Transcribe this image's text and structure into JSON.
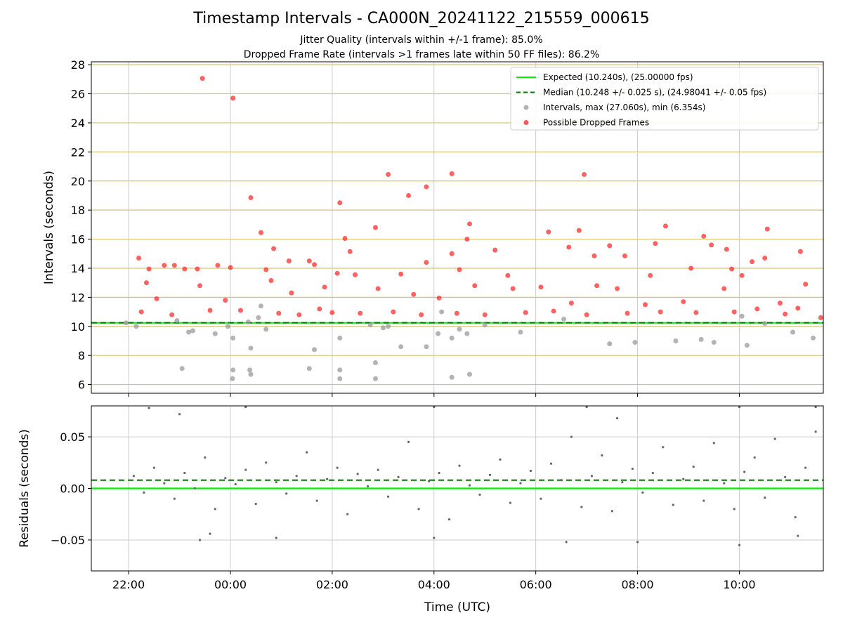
{
  "title": "Timestamp Intervals - CA000N_20241122_215559_000615",
  "subtitle_jitter": "Jitter Quality (intervals within +/-1 frame): 85.0%",
  "subtitle_dropped": "Dropped Frame Rate (intervals >1 frames late within 50 FF files): 86.2%",
  "colors": {
    "expected": "#00ee00",
    "median": "#007700",
    "intervals": "#999999",
    "dropped": "#ff2020",
    "residual": "#666666",
    "top_grid": "#d8c27a",
    "grid": "#cccccc"
  },
  "chart_data": [
    {
      "type": "scatter",
      "panel": "top",
      "ylabel": "Intervals (seconds)",
      "ylim": [
        5.4,
        28.2
      ],
      "yticks": [
        6,
        8,
        10,
        12,
        14,
        16,
        18,
        20,
        22,
        24,
        26,
        28
      ],
      "x_time_range_hours": [
        21.267,
        35.65
      ],
      "expected_interval": 10.24,
      "median_interval": 10.248,
      "legend_position": "top-right",
      "legend": [
        "Expected (10.240s), (25.00000 fps)",
        "Median (10.248 +/- 0.025 s), (24.98041 +/- 0.05 fps)",
        "Intervals, max (27.060s), min (6.354s)",
        "Possible Dropped Frames"
      ],
      "series": [
        {
          "name": "Intervals, max (27.060s), min (6.354s)",
          "points": [
            [
              21.95,
              10.24
            ],
            [
              22.15,
              10.0
            ],
            [
              22.95,
              10.4
            ],
            [
              23.05,
              7.1
            ],
            [
              23.18,
              9.6
            ],
            [
              23.26,
              9.7
            ],
            [
              23.7,
              9.5
            ],
            [
              23.95,
              10.0
            ],
            [
              24.05,
              9.2
            ],
            [
              24.05,
              7.0
            ],
            [
              24.04,
              6.4
            ],
            [
              24.35,
              10.3
            ],
            [
              24.38,
              7.0
            ],
            [
              24.4,
              8.5
            ],
            [
              24.4,
              6.7
            ],
            [
              24.6,
              11.4
            ],
            [
              24.7,
              9.8
            ],
            [
              24.55,
              10.6
            ],
            [
              25.55,
              7.1
            ],
            [
              25.65,
              8.4
            ],
            [
              26.15,
              9.2
            ],
            [
              26.15,
              7.0
            ],
            [
              26.15,
              6.4
            ],
            [
              26.75,
              10.1
            ],
            [
              26.85,
              7.5
            ],
            [
              26.85,
              6.4
            ],
            [
              27.0,
              9.9
            ],
            [
              27.1,
              10.0
            ],
            [
              27.35,
              8.6
            ],
            [
              27.85,
              8.6
            ],
            [
              28.08,
              9.5
            ],
            [
              28.15,
              11.0
            ],
            [
              28.35,
              9.2
            ],
            [
              28.35,
              6.5
            ],
            [
              28.5,
              9.8
            ],
            [
              28.65,
              9.5
            ],
            [
              28.7,
              6.7
            ],
            [
              29.0,
              10.1
            ],
            [
              29.7,
              9.6
            ],
            [
              30.55,
              10.5
            ],
            [
              31.45,
              8.8
            ],
            [
              31.95,
              8.9
            ],
            [
              32.75,
              9.0
            ],
            [
              33.25,
              9.1
            ],
            [
              33.5,
              8.9
            ],
            [
              34.05,
              10.7
            ],
            [
              34.15,
              8.7
            ],
            [
              34.5,
              10.2
            ],
            [
              35.05,
              9.6
            ],
            [
              35.45,
              9.2
            ]
          ]
        },
        {
          "name": "Possible Dropped Frames",
          "points": [
            [
              23.45,
              27.06
            ],
            [
              24.05,
              25.7
            ],
            [
              24.4,
              18.85
            ],
            [
              24.6,
              16.45
            ],
            [
              24.85,
              15.35
            ],
            [
              26.15,
              18.5
            ],
            [
              26.25,
              16.05
            ],
            [
              26.35,
              15.15
            ],
            [
              26.85,
              16.8
            ],
            [
              27.1,
              20.45
            ],
            [
              27.5,
              19.0
            ],
            [
              27.35,
              13.6
            ],
            [
              27.85,
              19.6
            ],
            [
              27.85,
              14.4
            ],
            [
              28.35,
              20.5
            ],
            [
              28.35,
              15.0
            ],
            [
              28.65,
              16.0
            ],
            [
              28.7,
              17.05
            ],
            [
              28.5,
              13.9
            ],
            [
              29.2,
              15.25
            ],
            [
              29.45,
              13.5
            ],
            [
              30.25,
              16.5
            ],
            [
              30.85,
              16.6
            ],
            [
              30.65,
              15.45
            ],
            [
              30.95,
              20.45
            ],
            [
              31.15,
              14.85
            ],
            [
              31.45,
              15.55
            ],
            [
              31.75,
              14.85
            ],
            [
              32.25,
              13.5
            ],
            [
              32.35,
              15.7
            ],
            [
              32.55,
              16.9
            ],
            [
              33.05,
              14.0
            ],
            [
              33.3,
              16.2
            ],
            [
              33.45,
              15.6
            ],
            [
              33.75,
              15.3
            ],
            [
              33.85,
              13.95
            ],
            [
              34.05,
              13.5
            ],
            [
              34.55,
              16.7
            ],
            [
              34.5,
              14.7
            ],
            [
              34.25,
              14.45
            ],
            [
              35.2,
              15.15
            ],
            [
              35.3,
              12.9
            ],
            [
              22.2,
              14.7
            ],
            [
              22.4,
              13.95
            ],
            [
              22.35,
              13.0
            ],
            [
              22.7,
              14.2
            ],
            [
              22.9,
              14.2
            ],
            [
              23.1,
              13.95
            ],
            [
              23.35,
              13.95
            ],
            [
              23.75,
              14.2
            ],
            [
              24.0,
              14.05
            ],
            [
              24.7,
              13.9
            ],
            [
              25.15,
              14.5
            ],
            [
              25.55,
              14.5
            ],
            [
              25.65,
              14.25
            ],
            [
              25.85,
              12.7
            ],
            [
              26.1,
              13.65
            ],
            [
              26.45,
              13.55
            ],
            [
              24.8,
              13.15
            ],
            [
              25.2,
              12.3
            ],
            [
              23.4,
              12.8
            ],
            [
              22.55,
              11.9
            ],
            [
              23.9,
              11.8
            ],
            [
              25.75,
              11.2
            ],
            [
              26.9,
              12.6
            ],
            [
              27.6,
              12.2
            ],
            [
              28.1,
              11.95
            ],
            [
              28.8,
              12.8
            ],
            [
              29.55,
              12.6
            ],
            [
              30.1,
              12.7
            ],
            [
              30.7,
              11.6
            ],
            [
              31.2,
              12.8
            ],
            [
              31.6,
              12.6
            ],
            [
              32.15,
              11.5
            ],
            [
              32.9,
              11.7
            ],
            [
              33.7,
              12.6
            ],
            [
              34.35,
              11.2
            ],
            [
              34.8,
              11.6
            ],
            [
              35.15,
              11.25
            ],
            [
              35.6,
              10.6
            ],
            [
              22.25,
              11.0
            ],
            [
              22.85,
              10.8
            ],
            [
              23.6,
              11.1
            ],
            [
              24.2,
              11.1
            ],
            [
              24.95,
              10.9
            ],
            [
              25.35,
              10.8
            ],
            [
              26.0,
              10.95
            ],
            [
              26.55,
              10.9
            ],
            [
              27.2,
              11.0
            ],
            [
              27.75,
              10.8
            ],
            [
              28.45,
              10.9
            ],
            [
              29.0,
              10.8
            ],
            [
              29.8,
              10.95
            ],
            [
              30.35,
              11.05
            ],
            [
              31.0,
              10.8
            ],
            [
              31.8,
              10.9
            ],
            [
              32.45,
              11.0
            ],
            [
              33.15,
              10.95
            ],
            [
              33.9,
              11.0
            ],
            [
              34.9,
              10.85
            ]
          ]
        }
      ]
    },
    {
      "type": "scatter",
      "panel": "bottom",
      "xlabel": "Time (UTC)",
      "ylabel": "Residuals (seconds)",
      "ylim": [
        -0.08,
        0.08
      ],
      "yticks": [
        0.05,
        0.0,
        -0.05
      ],
      "ytick_labels": [
        "0.05",
        "0.00",
        "−0.05"
      ],
      "x_time_range_hours": [
        21.267,
        35.65
      ],
      "xticks": [
        22,
        24,
        26,
        28,
        30,
        32,
        34
      ],
      "xtick_labels": [
        "22:00",
        "00:00",
        "02:00",
        "04:00",
        "06:00",
        "08:00",
        "10:00"
      ],
      "expected_residual": 0.0,
      "median_residual": 0.008,
      "series": [
        {
          "name": "Residuals",
          "points": [
            [
              22.1,
              0.012
            ],
            [
              22.3,
              -0.004
            ],
            [
              22.5,
              0.02
            ],
            [
              22.7,
              0.005
            ],
            [
              22.9,
              -0.01
            ],
            [
              23.1,
              0.015
            ],
            [
              23.3,
              0.0
            ],
            [
              23.5,
              0.03
            ],
            [
              23.7,
              -0.02
            ],
            [
              23.9,
              0.01
            ],
            [
              24.1,
              0.004
            ],
            [
              24.3,
              0.018
            ],
            [
              24.5,
              -0.015
            ],
            [
              24.7,
              0.025
            ],
            [
              24.9,
              0.006
            ],
            [
              25.1,
              -0.005
            ],
            [
              25.3,
              0.012
            ],
            [
              25.5,
              0.035
            ],
            [
              25.7,
              -0.012
            ],
            [
              25.9,
              0.009
            ],
            [
              26.1,
              0.02
            ],
            [
              26.3,
              -0.025
            ],
            [
              26.5,
              0.014
            ],
            [
              26.7,
              0.002
            ],
            [
              26.9,
              0.018
            ],
            [
              27.1,
              -0.008
            ],
            [
              27.3,
              0.011
            ],
            [
              27.5,
              0.045
            ],
            [
              27.7,
              -0.02
            ],
            [
              27.9,
              0.007
            ],
            [
              28.1,
              0.015
            ],
            [
              28.3,
              -0.03
            ],
            [
              28.5,
              0.022
            ],
            [
              28.7,
              0.003
            ],
            [
              28.9,
              -0.006
            ],
            [
              29.1,
              0.013
            ],
            [
              29.3,
              0.028
            ],
            [
              29.5,
              -0.014
            ],
            [
              29.7,
              0.005
            ],
            [
              29.9,
              0.017
            ],
            [
              30.1,
              -0.01
            ],
            [
              30.3,
              0.024
            ],
            [
              30.5,
              0.008
            ],
            [
              30.7,
              0.05
            ],
            [
              30.9,
              -0.018
            ],
            [
              31.1,
              0.012
            ],
            [
              31.3,
              0.032
            ],
            [
              31.5,
              -0.022
            ],
            [
              31.7,
              0.006
            ],
            [
              31.9,
              0.019
            ],
            [
              32.1,
              -0.004
            ],
            [
              32.3,
              0.015
            ],
            [
              32.5,
              0.04
            ],
            [
              32.7,
              -0.016
            ],
            [
              32.9,
              0.009
            ],
            [
              33.1,
              0.021
            ],
            [
              33.3,
              -0.012
            ],
            [
              33.5,
              0.044
            ],
            [
              33.7,
              0.005
            ],
            [
              33.9,
              -0.02
            ],
            [
              34.1,
              0.016
            ],
            [
              34.3,
              0.03
            ],
            [
              34.5,
              -0.009
            ],
            [
              34.7,
              0.048
            ],
            [
              34.9,
              0.011
            ],
            [
              35.1,
              -0.028
            ],
            [
              35.3,
              0.02
            ],
            [
              35.5,
              0.055
            ],
            [
              23.4,
              -0.05
            ],
            [
              23.6,
              -0.044
            ],
            [
              24.9,
              -0.048
            ],
            [
              28.0,
              -0.048
            ],
            [
              30.6,
              -0.052
            ],
            [
              32.0,
              -0.052
            ],
            [
              34.0,
              -0.055
            ],
            [
              35.15,
              -0.046
            ],
            [
              22.4,
              0.078
            ],
            [
              24.3,
              0.079
            ],
            [
              28.0,
              0.079
            ],
            [
              31.0,
              0.079
            ],
            [
              34.0,
              0.079
            ],
            [
              35.5,
              0.079
            ],
            [
              31.6,
              0.068
            ],
            [
              23.0,
              0.072
            ]
          ]
        }
      ]
    }
  ]
}
